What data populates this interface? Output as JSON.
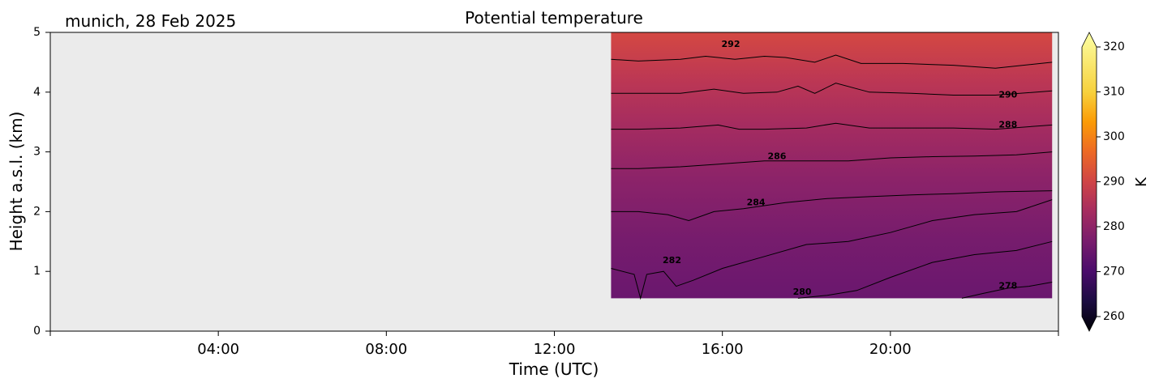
{
  "chart_data": {
    "type": "heatmap",
    "title": "Potential temperature",
    "location_date_label": "munich, 28 Feb 2025",
    "xlabel": "Time (UTC)",
    "ylabel": "Height a.s.l. (km)",
    "x_unit": "hours UTC",
    "xlim": [
      0,
      24
    ],
    "x_ticks": [
      {
        "value": 4,
        "label": "04:00"
      },
      {
        "value": 8,
        "label": "08:00"
      },
      {
        "value": 12,
        "label": "12:00"
      },
      {
        "value": 16,
        "label": "16:00"
      },
      {
        "value": 20,
        "label": "20:00"
      }
    ],
    "ylim": [
      0,
      5
    ],
    "y_ticks": [
      {
        "value": 0,
        "label": "0"
      },
      {
        "value": 1,
        "label": "1"
      },
      {
        "value": 2,
        "label": "2"
      },
      {
        "value": 3,
        "label": "3"
      },
      {
        "value": 4,
        "label": "4"
      },
      {
        "value": 5,
        "label": "5"
      }
    ],
    "no_data_color": "#ebebeb",
    "data_extent": {
      "x": [
        13.35,
        23.85
      ],
      "y": [
        0.55,
        5.0
      ]
    },
    "colormap": "inferno",
    "colorbar": {
      "label": "K",
      "range": [
        260,
        320
      ],
      "ticks": [
        260,
        270,
        280,
        290,
        300,
        310,
        320
      ],
      "extend": "both"
    },
    "contour_levels": [
      278,
      280,
      282,
      284,
      286,
      288,
      290,
      292
    ],
    "contour_labels": [
      {
        "text": "278",
        "x": 22.8,
        "y": 0.75
      },
      {
        "text": "280",
        "x": 17.9,
        "y": 0.65
      },
      {
        "text": "282",
        "x": 14.8,
        "y": 1.18
      },
      {
        "text": "284",
        "x": 16.8,
        "y": 2.15
      },
      {
        "text": "286",
        "x": 17.3,
        "y": 2.92
      },
      {
        "text": "288",
        "x": 22.8,
        "y": 3.45
      },
      {
        "text": "290",
        "x": 22.8,
        "y": 3.95
      },
      {
        "text": "292",
        "x": 16.2,
        "y": 4.8
      }
    ],
    "contours": [
      {
        "level": 278,
        "points": [
          [
            21.7,
            0.55
          ],
          [
            22.2,
            0.63
          ],
          [
            22.8,
            0.72
          ],
          [
            23.3,
            0.75
          ],
          [
            23.85,
            0.82
          ]
        ]
      },
      {
        "level": 280,
        "points": [
          [
            17.8,
            0.55
          ],
          [
            18.5,
            0.6
          ],
          [
            19.2,
            0.68
          ],
          [
            20.0,
            0.9
          ],
          [
            21.0,
            1.15
          ],
          [
            22.0,
            1.28
          ],
          [
            23.0,
            1.35
          ],
          [
            23.85,
            1.5
          ]
        ]
      },
      {
        "level": 282,
        "points": [
          [
            13.35,
            1.05
          ],
          [
            13.9,
            0.95
          ],
          [
            14.05,
            0.55
          ],
          [
            14.2,
            0.95
          ],
          [
            14.6,
            1.0
          ],
          [
            14.9,
            0.75
          ],
          [
            15.3,
            0.85
          ],
          [
            16.0,
            1.05
          ],
          [
            17.0,
            1.25
          ],
          [
            18.0,
            1.45
          ],
          [
            19.0,
            1.5
          ],
          [
            20.0,
            1.65
          ],
          [
            21.0,
            1.85
          ],
          [
            22.0,
            1.95
          ],
          [
            23.0,
            2.0
          ],
          [
            23.85,
            2.2
          ]
        ]
      },
      {
        "level": 284,
        "points": [
          [
            13.35,
            2.0
          ],
          [
            14.0,
            2.0
          ],
          [
            14.7,
            1.95
          ],
          [
            15.2,
            1.85
          ],
          [
            15.8,
            2.0
          ],
          [
            16.5,
            2.05
          ],
          [
            17.5,
            2.15
          ],
          [
            18.5,
            2.22
          ],
          [
            19.5,
            2.25
          ],
          [
            20.5,
            2.28
          ],
          [
            21.5,
            2.3
          ],
          [
            22.5,
            2.33
          ],
          [
            23.85,
            2.35
          ]
        ]
      },
      {
        "level": 286,
        "points": [
          [
            13.35,
            2.72
          ],
          [
            14.0,
            2.72
          ],
          [
            15.0,
            2.75
          ],
          [
            16.0,
            2.8
          ],
          [
            17.0,
            2.85
          ],
          [
            18.0,
            2.85
          ],
          [
            19.0,
            2.85
          ],
          [
            20.0,
            2.9
          ],
          [
            21.0,
            2.92
          ],
          [
            22.0,
            2.93
          ],
          [
            23.0,
            2.95
          ],
          [
            23.85,
            3.0
          ]
        ]
      },
      {
        "level": 288,
        "points": [
          [
            13.35,
            3.38
          ],
          [
            14.0,
            3.38
          ],
          [
            15.0,
            3.4
          ],
          [
            15.9,
            3.45
          ],
          [
            16.4,
            3.38
          ],
          [
            17.0,
            3.38
          ],
          [
            18.0,
            3.4
          ],
          [
            18.7,
            3.48
          ],
          [
            19.5,
            3.4
          ],
          [
            20.5,
            3.4
          ],
          [
            21.5,
            3.4
          ],
          [
            22.5,
            3.38
          ],
          [
            23.85,
            3.45
          ]
        ]
      },
      {
        "level": 290,
        "points": [
          [
            13.35,
            3.98
          ],
          [
            14.0,
            3.98
          ],
          [
            15.0,
            3.98
          ],
          [
            15.8,
            4.05
          ],
          [
            16.5,
            3.98
          ],
          [
            17.3,
            4.0
          ],
          [
            17.8,
            4.1
          ],
          [
            18.2,
            3.98
          ],
          [
            18.7,
            4.15
          ],
          [
            19.5,
            4.0
          ],
          [
            20.5,
            3.98
          ],
          [
            21.5,
            3.95
          ],
          [
            22.5,
            3.95
          ],
          [
            23.85,
            4.02
          ]
        ]
      },
      {
        "level": 292,
        "points": [
          [
            13.35,
            4.55
          ],
          [
            14.0,
            4.52
          ],
          [
            15.0,
            4.55
          ],
          [
            15.6,
            4.6
          ],
          [
            16.3,
            4.55
          ],
          [
            17.0,
            4.6
          ],
          [
            17.5,
            4.58
          ],
          [
            18.2,
            4.5
          ],
          [
            18.7,
            4.62
          ],
          [
            19.3,
            4.48
          ],
          [
            20.3,
            4.48
          ],
          [
            21.5,
            4.45
          ],
          [
            22.5,
            4.4
          ],
          [
            23.85,
            4.5
          ]
        ]
      }
    ]
  }
}
